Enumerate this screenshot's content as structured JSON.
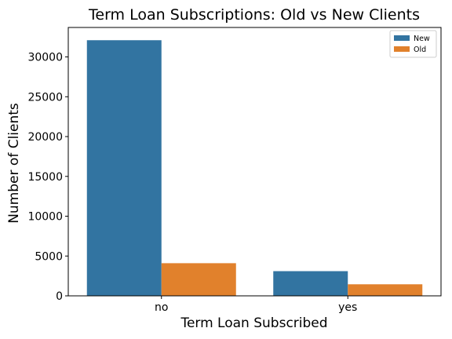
{
  "chart_data": {
    "type": "bar",
    "title": "Term Loan Subscriptions: Old vs New Clients",
    "xlabel": "Term Loan Subscribed",
    "ylabel": "Number of Clients",
    "categories": [
      "no",
      "yes"
    ],
    "series": [
      {
        "name": "New",
        "values": [
          32100,
          3100
        ],
        "color": "#3274a1"
      },
      {
        "name": "Old",
        "values": [
          4100,
          1450
        ],
        "color": "#e1812c"
      }
    ],
    "ylim": [
      0,
      33700
    ],
    "yticks": [
      0,
      5000,
      10000,
      15000,
      20000,
      25000,
      30000
    ],
    "grid": false,
    "legend": "top-right"
  }
}
